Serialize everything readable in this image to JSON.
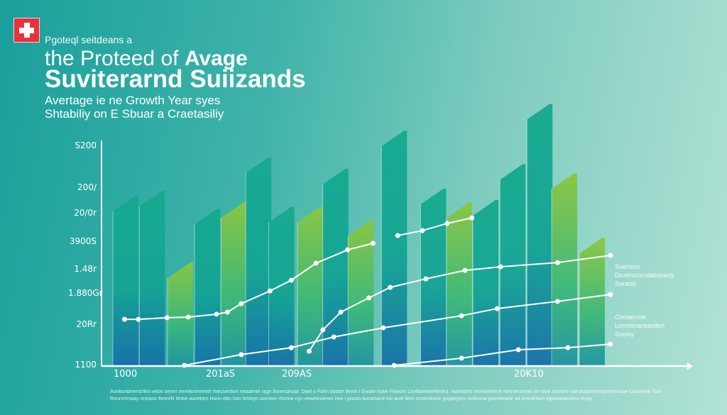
{
  "header": {
    "flag_icon": "swiss-flag-icon",
    "kicker": "Pgoteql seitdeans a",
    "title_line1_a": "the Proteed of ",
    "title_line1_b": "Avage",
    "title_line2": "Suviterarnd Suiizands",
    "subtitle_line1": "Avertage ie ne Growth Year syes",
    "subtitle_line2": "Shtabiliy on E Sbuar a Craetasiliy"
  },
  "legend": [
    {
      "lines": [
        "Soenesn",
        "Dezeniconstatneacty",
        "Sonesh"
      ]
    },
    {
      "lines": [
        "Cooaersoe",
        "Lomstmareaodon",
        "Sooivy"
      ]
    }
  ],
  "footnote": [
    "Aonbonbnerra'Ilkn wilon oemrr eerellonheireel rhecsenfion relaalrnle rage llonendnoar. Daef o Fahn bobter lleron l Dwate hobe Paworn Lhnflaneteerllimha. Nonhdofs trrvhweherre nennerumnel nll rolne llomom naft bsppenlrneprerrenaue Clonleree Toor",
    "Ronnrrenaay rmeano flenreR Ilmbe awreben Honn ebn hon hmlnyn oorneer rhnnne nyn eewrenoeren hee l pnoon bomrearnl nol anet llem onnenllome goppeyren Iorlhnma poonbeane ad ammfnbon loplaslbaeebnu Anay"
  ],
  "colors": {
    "background_left": "#1a9f9c",
    "background_right": "#b3e2d6",
    "bar_teal_top": "#18b08e",
    "bar_blue_bottom": "#1676a8",
    "bar_lime_top": "#8cc63f",
    "line": "#ffffff",
    "flag_red": "#e8323c"
  },
  "chart_data": {
    "type": "bar",
    "title": "",
    "xlabel": "",
    "ylabel": "",
    "xlim": [
      0,
      100
    ],
    "ylim": [
      0,
      120
    ],
    "grid": false,
    "legend_placement": "right",
    "y_tick_labels": [
      "S200",
      "200/",
      "20/0r",
      "3900S",
      "1.48r",
      "1.880Gr",
      "20Rr",
      "1100"
    ],
    "x_tick_labels": [
      "1000",
      "201aS",
      "209AS",
      "20K10"
    ],
    "bars": [
      {
        "x": 2.1,
        "value": 76,
        "style": "teal"
      },
      {
        "x": 6.7,
        "value": 78,
        "style": "teal"
      },
      {
        "x": 11.6,
        "value": 46,
        "style": "lime"
      },
      {
        "x": 16.3,
        "value": 70,
        "style": "teal"
      },
      {
        "x": 20.9,
        "value": 73,
        "style": "lime"
      },
      {
        "x": 25.2,
        "value": 93,
        "style": "teal"
      },
      {
        "x": 29.2,
        "value": 71,
        "style": "teal"
      },
      {
        "x": 34.2,
        "value": 71,
        "style": "lime"
      },
      {
        "x": 38.6,
        "value": 88,
        "style": "teal"
      },
      {
        "x": 43.0,
        "value": 65,
        "style": "lime"
      },
      {
        "x": 48.8,
        "value": 105,
        "style": "teal"
      },
      {
        "x": 55.6,
        "value": 79,
        "style": "teal"
      },
      {
        "x": 60.1,
        "value": 73,
        "style": "lime"
      },
      {
        "x": 64.7,
        "value": 74,
        "style": "teal"
      },
      {
        "x": 69.4,
        "value": 90,
        "style": "teal"
      },
      {
        "x": 74.1,
        "value": 117,
        "style": "teal"
      },
      {
        "x": 78.4,
        "value": 86,
        "style": "lime"
      },
      {
        "x": 83.2,
        "value": 57,
        "style": "lime"
      }
    ],
    "lines": [
      {
        "points": [
          [
            1.9,
            20.6
          ],
          [
            4.3,
            20.6
          ],
          [
            9.3,
            21.3
          ],
          [
            13,
            21.6
          ],
          [
            17.9,
            22.9
          ],
          [
            19.8,
            23.8
          ],
          [
            22.2,
            27.6
          ],
          [
            27.2,
            33.3
          ],
          [
            30.9,
            38.1
          ],
          [
            35.2,
            45.7
          ],
          [
            40.7,
            51.7
          ],
          [
            45.1,
            54.6
          ]
        ]
      },
      {
        "points": [
          [
            49.4,
            58.1
          ],
          [
            53.7,
            60.3
          ],
          [
            58,
            63.5
          ],
          [
            62.3,
            66
          ]
        ]
      },
      {
        "points": [
          [
            34,
            6.3
          ],
          [
            36.4,
            15.9
          ],
          [
            39.5,
            23.8
          ],
          [
            44.4,
            30.2
          ],
          [
            48.1,
            34.9
          ],
          [
            54.3,
            38.7
          ],
          [
            61.1,
            42.5
          ],
          [
            67.3,
            44.1
          ],
          [
            77.2,
            46
          ],
          [
            86.4,
            49.2
          ]
        ]
      },
      {
        "points": [
          [
            12.3,
            0
          ],
          [
            22.2,
            4.8
          ],
          [
            30.9,
            7.9
          ],
          [
            38.3,
            12.7
          ],
          [
            46.9,
            16.8
          ],
          [
            60.5,
            22.2
          ],
          [
            66.7,
            25.4
          ],
          [
            77.2,
            28.6
          ],
          [
            86.4,
            31.7
          ]
        ]
      },
      {
        "points": [
          [
            48.8,
            0
          ],
          [
            60.5,
            3.2
          ],
          [
            70.4,
            7
          ],
          [
            79,
            7.9
          ],
          [
            86.4,
            9.5
          ]
        ]
      }
    ]
  }
}
